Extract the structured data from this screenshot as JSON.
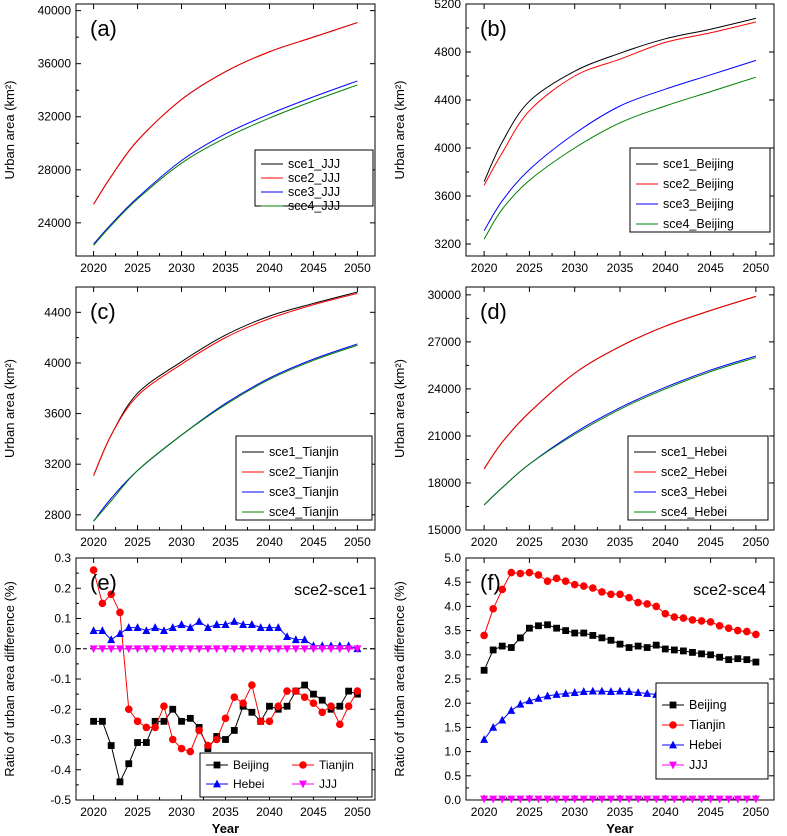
{
  "chart_data": [
    {
      "type": "line",
      "panel_label": "(a)",
      "ylabel": "Urban area (km²)",
      "xlim": [
        2018,
        2052
      ],
      "ylim": [
        21500,
        40500
      ],
      "x_ticks": [
        "2020",
        "2025",
        "2030",
        "2035",
        "2040",
        "2045",
        "2050"
      ],
      "y_ticks": [
        "24000",
        "28000",
        "32000",
        "36000",
        "40000"
      ],
      "x": [
        2020,
        2022,
        2025,
        2030,
        2035,
        2040,
        2045,
        2050
      ],
      "series": [
        {
          "name": "sce1_JJJ",
          "color": "#000000",
          "values": [
            25400,
            27500,
            30200,
            33300,
            35400,
            36900,
            38000,
            39100
          ]
        },
        {
          "name": "sce2_JJJ",
          "color": "#ff0000",
          "values": [
            25400,
            27500,
            30200,
            33300,
            35400,
            36900,
            38000,
            39100
          ]
        },
        {
          "name": "sce3_JJJ",
          "color": "#0000ff",
          "values": [
            22400,
            23900,
            25900,
            28700,
            30700,
            32200,
            33500,
            34700
          ]
        },
        {
          "name": "sce4_JJJ",
          "color": "#008000",
          "values": [
            22300,
            23800,
            25800,
            28500,
            30400,
            31900,
            33200,
            34400
          ]
        }
      ]
    },
    {
      "type": "line",
      "panel_label": "(b)",
      "ylabel": "Urban area (km²)",
      "xlim": [
        2018,
        2052
      ],
      "ylim": [
        3100,
        5200
      ],
      "x_ticks": [
        "2020",
        "2025",
        "2030",
        "2035",
        "2040",
        "2045",
        "2050"
      ],
      "y_ticks": [
        "3200",
        "3600",
        "4000",
        "4400",
        "4800",
        "5200"
      ],
      "x": [
        2020,
        2022,
        2025,
        2030,
        2035,
        2040,
        2045,
        2050
      ],
      "series": [
        {
          "name": "sce1_Beijing",
          "color": "#000000",
          "values": [
            3720,
            4050,
            4390,
            4640,
            4790,
            4910,
            4990,
            5080
          ]
        },
        {
          "name": "sce2_Beijing",
          "color": "#ff0000",
          "values": [
            3690,
            3960,
            4310,
            4600,
            4740,
            4880,
            4960,
            5050
          ]
        },
        {
          "name": "sce3_Beijing",
          "color": "#0000ff",
          "values": [
            3310,
            3560,
            3820,
            4120,
            4350,
            4490,
            4610,
            4730
          ]
        },
        {
          "name": "sce4_Beijing",
          "color": "#008000",
          "values": [
            3240,
            3490,
            3730,
            4000,
            4210,
            4350,
            4470,
            4590
          ]
        }
      ]
    },
    {
      "type": "line",
      "panel_label": "(c)",
      "ylabel": "Urban area (km²)",
      "xlim": [
        2018,
        2052
      ],
      "ylim": [
        2680,
        4600
      ],
      "x_ticks": [
        "2020",
        "2025",
        "2030",
        "2035",
        "2040",
        "2045",
        "2050"
      ],
      "y_ticks": [
        "2800",
        "3200",
        "3600",
        "4000",
        "4400"
      ],
      "x": [
        2020,
        2022,
        2025,
        2030,
        2035,
        2040,
        2045,
        2050
      ],
      "series": [
        {
          "name": "sce1_Tianjin",
          "color": "#000000",
          "values": [
            3110,
            3430,
            3760,
            4010,
            4220,
            4370,
            4470,
            4560
          ]
        },
        {
          "name": "sce2_Tianjin",
          "color": "#ff0000",
          "values": [
            3110,
            3430,
            3740,
            3990,
            4200,
            4350,
            4460,
            4550
          ]
        },
        {
          "name": "sce3_Tianjin",
          "color": "#0000ff",
          "values": [
            2750,
            2930,
            3150,
            3430,
            3680,
            3880,
            4030,
            4150
          ]
        },
        {
          "name": "sce4_Tianjin",
          "color": "#008000",
          "values": [
            2750,
            2910,
            3150,
            3430,
            3670,
            3870,
            4020,
            4140
          ]
        }
      ]
    },
    {
      "type": "line",
      "panel_label": "(d)",
      "ylabel": "Urban area (km²)",
      "xlim": [
        2018,
        2052
      ],
      "ylim": [
        15000,
        30500
      ],
      "x_ticks": [
        "2020",
        "2025",
        "2030",
        "2035",
        "2040",
        "2045",
        "2050"
      ],
      "y_ticks": [
        "15000",
        "18000",
        "21000",
        "24000",
        "27000",
        "30000"
      ],
      "x": [
        2020,
        2022,
        2025,
        2030,
        2035,
        2040,
        2045,
        2050
      ],
      "series": [
        {
          "name": "sce1_Hebei",
          "color": "#000000",
          "values": [
            18900,
            20600,
            22500,
            25000,
            26700,
            28000,
            29000,
            29900
          ]
        },
        {
          "name": "sce2_Hebei",
          "color": "#ff0000",
          "values": [
            18900,
            20600,
            22500,
            25000,
            26700,
            28000,
            29000,
            29900
          ]
        },
        {
          "name": "sce3_Hebei",
          "color": "#0000ff",
          "values": [
            16600,
            17700,
            19200,
            21200,
            22800,
            24100,
            25200,
            26100
          ]
        },
        {
          "name": "sce4_Hebei",
          "color": "#008000",
          "values": [
            16600,
            17700,
            19200,
            21100,
            22700,
            24000,
            25100,
            26000
          ]
        }
      ]
    },
    {
      "type": "line",
      "panel_label": "(e)",
      "annotation": "sce2-sce1",
      "ylabel": "Ratio of urban area difference (%)",
      "xlabel": "Year",
      "xlim": [
        2018,
        2052
      ],
      "ylim": [
        -0.5,
        0.3
      ],
      "x_ticks": [
        "2020",
        "2025",
        "2030",
        "2035",
        "2040",
        "2045",
        "2050"
      ],
      "y_ticks": [
        "-0.5",
        "-0.4",
        "-0.3",
        "-0.2",
        "-0.1",
        "0.0",
        "0.1",
        "0.2",
        "0.3"
      ],
      "x": [
        2020,
        2021,
        2022,
        2023,
        2024,
        2025,
        2026,
        2027,
        2028,
        2029,
        2030,
        2031,
        2032,
        2033,
        2034,
        2035,
        2036,
        2037,
        2038,
        2039,
        2040,
        2041,
        2042,
        2043,
        2044,
        2045,
        2046,
        2047,
        2048,
        2049,
        2050
      ],
      "series": [
        {
          "name": "Beijing",
          "marker": "square",
          "color": "#000000",
          "values": [
            -0.24,
            -0.24,
            -0.32,
            -0.44,
            -0.38,
            -0.31,
            -0.31,
            -0.24,
            -0.24,
            -0.2,
            -0.24,
            -0.23,
            -0.26,
            -0.33,
            -0.29,
            -0.3,
            -0.27,
            -0.19,
            -0.21,
            -0.24,
            -0.19,
            -0.2,
            -0.19,
            -0.14,
            -0.12,
            -0.15,
            -0.17,
            -0.2,
            -0.19,
            -0.14,
            -0.15
          ]
        },
        {
          "name": "Tianjin",
          "marker": "circle",
          "color": "#ff0000",
          "values": [
            0.26,
            0.15,
            0.18,
            0.12,
            -0.2,
            -0.24,
            -0.26,
            -0.26,
            -0.19,
            -0.3,
            -0.33,
            -0.34,
            -0.27,
            -0.32,
            -0.3,
            -0.23,
            -0.16,
            -0.18,
            -0.12,
            -0.24,
            -0.24,
            -0.19,
            -0.14,
            -0.14,
            -0.16,
            -0.18,
            -0.21,
            -0.19,
            -0.25,
            -0.19,
            -0.14
          ]
        },
        {
          "name": "Hebei",
          "marker": "triangle-up",
          "color": "#0000ff",
          "values": [
            0.06,
            0.06,
            0.03,
            0.05,
            0.07,
            0.07,
            0.06,
            0.07,
            0.06,
            0.07,
            0.08,
            0.07,
            0.09,
            0.07,
            0.08,
            0.08,
            0.09,
            0.08,
            0.08,
            0.07,
            0.07,
            0.07,
            0.04,
            0.03,
            0.03,
            0.01,
            0.01,
            0.01,
            0.01,
            0.01,
            0.0
          ]
        },
        {
          "name": "JJJ",
          "marker": "triangle-down",
          "color": "#ff00ff",
          "values": [
            0.0,
            0.0,
            0.0,
            0.0,
            0.0,
            0.0,
            0.0,
            0.0,
            0.0,
            0.0,
            0.0,
            0.0,
            0.0,
            0.0,
            0.0,
            0.0,
            0.0,
            0.0,
            0.0,
            0.0,
            0.0,
            0.0,
            0.0,
            0.0,
            0.0,
            0.0,
            0.0,
            0.0,
            0.0,
            0.0,
            0.0
          ]
        }
      ]
    },
    {
      "type": "line",
      "panel_label": "(f)",
      "annotation": "sce2-sce4",
      "ylabel": "Ratio of urban area difference (%)",
      "xlabel": "Year",
      "xlim": [
        2018,
        2052
      ],
      "ylim": [
        0.0,
        5.0
      ],
      "x_ticks": [
        "2020",
        "2025",
        "2030",
        "2035",
        "2040",
        "2045",
        "2050"
      ],
      "y_ticks": [
        "0.0",
        "0.5",
        "1.0",
        "1.5",
        "2.0",
        "2.5",
        "3.0",
        "3.5",
        "4.0",
        "4.5",
        "5.0"
      ],
      "x": [
        2020,
        2021,
        2022,
        2023,
        2024,
        2025,
        2026,
        2027,
        2028,
        2029,
        2030,
        2031,
        2032,
        2033,
        2034,
        2035,
        2036,
        2037,
        2038,
        2039,
        2040,
        2041,
        2042,
        2043,
        2044,
        2045,
        2046,
        2047,
        2048,
        2049,
        2050
      ],
      "series": [
        {
          "name": "Beijing",
          "marker": "square",
          "color": "#000000",
          "values": [
            2.68,
            3.1,
            3.18,
            3.15,
            3.35,
            3.55,
            3.6,
            3.62,
            3.55,
            3.5,
            3.45,
            3.45,
            3.4,
            3.35,
            3.3,
            3.22,
            3.15,
            3.18,
            3.15,
            3.2,
            3.12,
            3.1,
            3.08,
            3.05,
            3.02,
            3.0,
            2.95,
            2.9,
            2.92,
            2.9,
            2.85
          ]
        },
        {
          "name": "Tianjin",
          "marker": "circle",
          "color": "#ff0000",
          "values": [
            3.4,
            3.95,
            4.35,
            4.7,
            4.68,
            4.7,
            4.65,
            4.52,
            4.58,
            4.52,
            4.45,
            4.42,
            4.38,
            4.3,
            4.25,
            4.25,
            4.18,
            4.08,
            4.05,
            4.0,
            3.85,
            3.78,
            3.76,
            3.72,
            3.7,
            3.68,
            3.6,
            3.55,
            3.5,
            3.48,
            3.42
          ]
        },
        {
          "name": "Hebei",
          "marker": "triangle-up",
          "color": "#0000ff",
          "values": [
            1.25,
            1.5,
            1.65,
            1.85,
            1.98,
            2.05,
            2.1,
            2.15,
            2.18,
            2.2,
            2.22,
            2.24,
            2.25,
            2.25,
            2.24,
            2.25,
            2.24,
            2.22,
            2.2,
            2.18,
            2.15,
            2.13,
            2.12,
            2.1,
            2.1,
            2.08,
            2.08,
            2.07,
            2.06,
            2.06,
            2.05
          ]
        },
        {
          "name": "JJJ",
          "marker": "triangle-down",
          "color": "#ff00ff",
          "values": [
            0.02,
            0.02,
            0.02,
            0.02,
            0.02,
            0.02,
            0.02,
            0.02,
            0.02,
            0.02,
            0.02,
            0.02,
            0.02,
            0.02,
            0.02,
            0.02,
            0.02,
            0.02,
            0.02,
            0.02,
            0.02,
            0.02,
            0.02,
            0.02,
            0.02,
            0.02,
            0.02,
            0.02,
            0.02,
            0.02,
            0.02
          ]
        }
      ]
    }
  ]
}
